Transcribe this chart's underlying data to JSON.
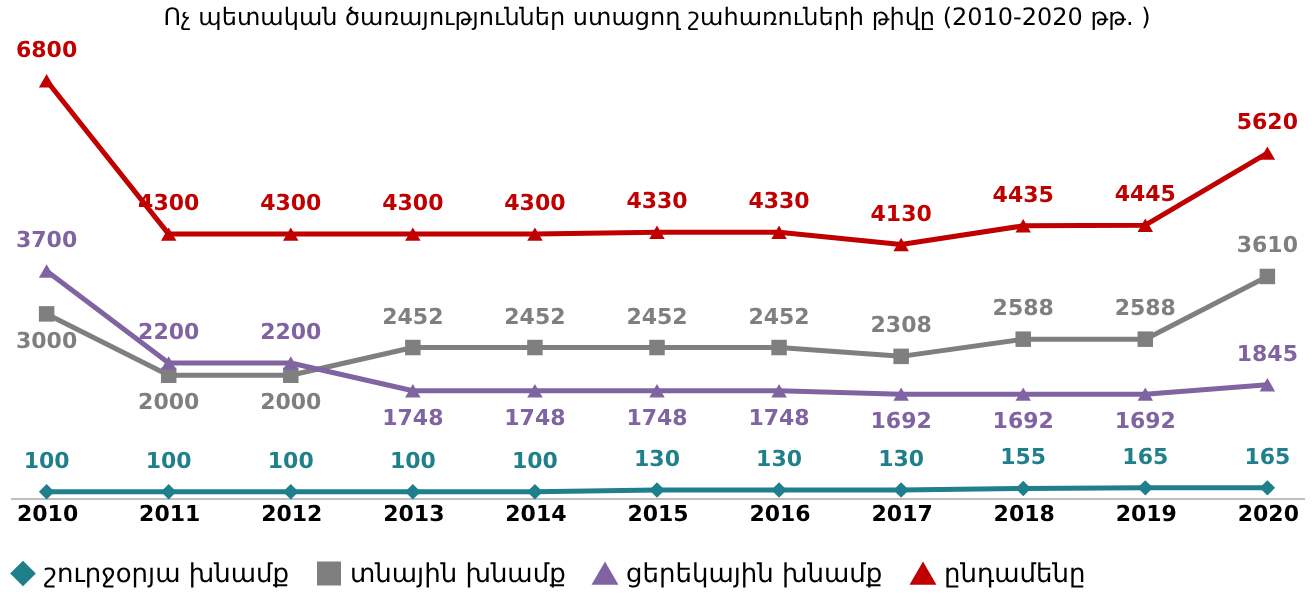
{
  "chart_data": {
    "type": "line",
    "title": "Ոչ  պետական ծառայություններ ստացող շահառուների թիվը (2010-2020 թթ. )",
    "categories": [
      "2010",
      "2011",
      "2012",
      "2013",
      "2014",
      "2015",
      "2016",
      "2017",
      "2018",
      "2019",
      "2020"
    ],
    "series": [
      {
        "name": "շուրջօրյա խնամք",
        "color": "#1f7f8a",
        "marker": "diamond",
        "values": [
          100,
          100,
          100,
          100,
          100,
          130,
          130,
          130,
          155,
          165,
          165
        ]
      },
      {
        "name": "տնային խնամք",
        "color": "#7f7f7f",
        "marker": "square",
        "values": [
          3000,
          2000,
          2000,
          2452,
          2452,
          2452,
          2452,
          2308,
          2588,
          2588,
          3610
        ]
      },
      {
        "name": "ցերեկային խնամք",
        "color": "#8064a2",
        "marker": "triangle",
        "values": [
          3700,
          2200,
          2200,
          1748,
          1748,
          1748,
          1748,
          1692,
          1692,
          1692,
          1845
        ]
      },
      {
        "name": "ընդամենը",
        "color": "#c00000",
        "marker": "triangle",
        "values": [
          6800,
          4300,
          4300,
          4300,
          4300,
          4330,
          4330,
          4130,
          4435,
          4445,
          5620
        ]
      }
    ],
    "data_labels": true,
    "legend": "bottom",
    "line_style": "solid"
  }
}
